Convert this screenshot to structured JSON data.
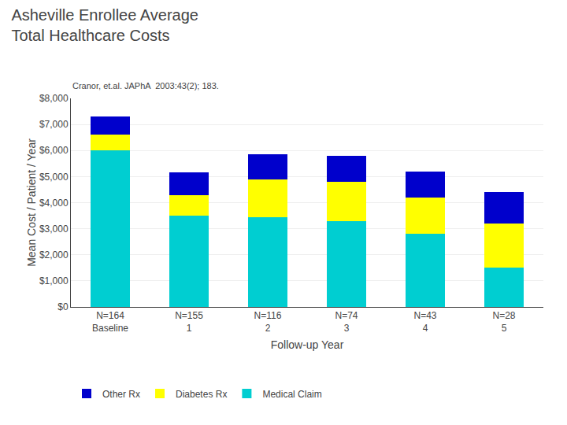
{
  "chart_data": {
    "type": "bar",
    "title": "Asheville Enrollee Average\nTotal Healthcare Costs",
    "subtitle": "Cranor, et.al. JAPhA  2003:43(2); 183.",
    "xlabel": "Follow-up Year",
    "ylabel": "Mean Cost / Patient / Year",
    "categories": [
      "N=164\nBaseline",
      "N=155\n1",
      "N=116\n2",
      "N=74\n3",
      "N=43\n4",
      "N=28\n5"
    ],
    "series": [
      {
        "name": "Medical Claim",
        "color": "#00CED1",
        "values": [
          6000,
          3500,
          3450,
          3300,
          2800,
          1500
        ]
      },
      {
        "name": "Diabetes Rx",
        "color": "#FFFF00",
        "values": [
          600,
          800,
          1450,
          1500,
          1400,
          1700
        ]
      },
      {
        "name": "Other Rx",
        "color": "#0000CC",
        "values": [
          700,
          850,
          950,
          1000,
          1000,
          1200
        ]
      }
    ],
    "stacked": true,
    "ylim": [
      0,
      8000
    ],
    "yticks": [
      {
        "value": 0,
        "label": "$0"
      },
      {
        "value": 1000,
        "label": "$1,000"
      },
      {
        "value": 2000,
        "label": "$2,000"
      },
      {
        "value": 3000,
        "label": "$3,000"
      },
      {
        "value": 4000,
        "label": "$4,000"
      },
      {
        "value": 5000,
        "label": "$5,000"
      },
      {
        "value": 6000,
        "label": "$6,000"
      },
      {
        "value": 7000,
        "label": "$7,000"
      },
      {
        "value": 8000,
        "label": "$8,000"
      }
    ],
    "grid": true,
    "legend": "lower left"
  }
}
